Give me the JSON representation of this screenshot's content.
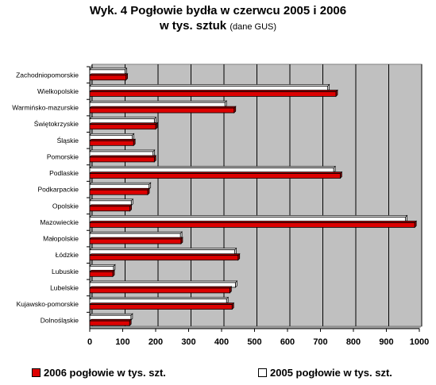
{
  "title_line1": "Wyk. 4  Pogłowie bydła w czerwcu 2005 i 2006",
  "title_line2_main": "w tys. sztuk",
  "title_line2_note": "(dane GUS)",
  "chart_data": {
    "type": "bar",
    "orientation": "horizontal",
    "categories": [
      "Zachodniopomorskie",
      "Wielkopolskie",
      "Warmińsko-mazurskie",
      "Świętokrzyskie",
      "Śląskie",
      "Pomorskie",
      "Podlaskie",
      "Podkarpackie",
      "Opolskie",
      "Mazowieckie",
      "Małopolskie",
      "Łódzkie",
      "Lubuskie",
      "Lubelskie",
      "Kujawsko-pomorskie",
      "Dolnośląskie"
    ],
    "series": [
      {
        "name": "2006 pogłowie w tys. szt.",
        "color": "#dd0000",
        "values": [
          110,
          747,
          438,
          200,
          133,
          196,
          760,
          176,
          122,
          986,
          277,
          450,
          70,
          425,
          432,
          121
        ]
      },
      {
        "name": "2005 pogłowie w tys. szt.",
        "color": "#ffffff",
        "values": [
          107,
          722,
          410,
          196,
          129,
          192,
          740,
          180,
          126,
          958,
          275,
          440,
          72,
          442,
          415,
          125
        ]
      }
    ],
    "xlim": [
      0,
      1000
    ],
    "xticks": [
      "0",
      "100",
      "200",
      "300",
      "400",
      "500",
      "600",
      "700",
      "800",
      "900",
      "1000"
    ],
    "grid": true,
    "legend_position": "bottom"
  }
}
